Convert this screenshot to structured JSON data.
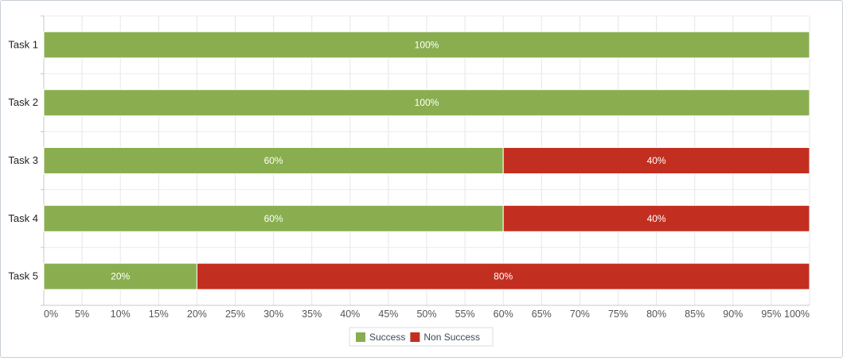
{
  "chart_data": {
    "type": "bar",
    "orientation": "horizontal",
    "stacked": true,
    "categories": [
      "Task 1",
      "Task 2",
      "Task 3",
      "Task 4",
      "Task 5"
    ],
    "series": [
      {
        "name": "Success",
        "color": "#8aae4f",
        "values": [
          100,
          100,
          60,
          60,
          20
        ]
      },
      {
        "name": "Non Success",
        "color": "#c22f20",
        "values": [
          0,
          0,
          40,
          40,
          80
        ]
      }
    ],
    "xlim": [
      0,
      100
    ],
    "xticks": [
      "0%",
      "5%",
      "10%",
      "15%",
      "20%",
      "25%",
      "30%",
      "35%",
      "40%",
      "45%",
      "50%",
      "55%",
      "60%",
      "65%",
      "70%",
      "75%",
      "80%",
      "85%",
      "90%",
      "95%",
      "100%"
    ],
    "value_suffix": "%",
    "grid": true,
    "legend_position": "bottom-center"
  }
}
